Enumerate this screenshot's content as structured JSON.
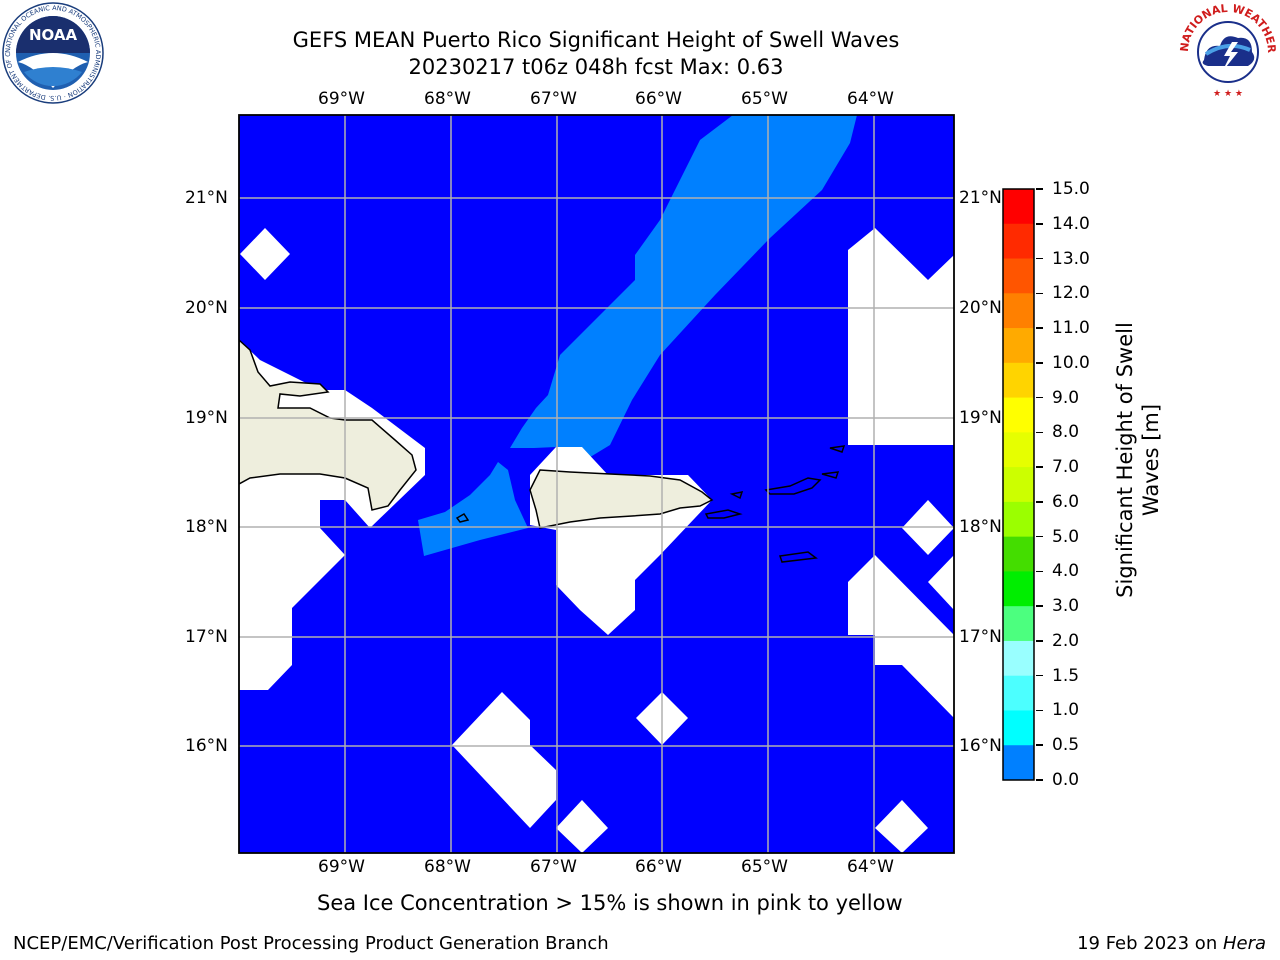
{
  "header": {
    "title_line1": "GEFS MEAN Puerto Rico Significant Height of Swell Waves",
    "title_line2": "20230217 t06z 048h fcst   Max: 0.63"
  },
  "logos": {
    "left": {
      "text": "NOAA",
      "ring_text": "NATIONAL OCEANIC AND ATMOSPHERIC ADMINISTRATION · U.S. DEPARTMENT OF COMMERCE"
    },
    "right": {
      "ring_text": "NATIONAL WEATHER SERVICE"
    }
  },
  "map": {
    "lon_labels": [
      "69°W",
      "68°W",
      "67°W",
      "66°W",
      "65°W",
      "64°W"
    ],
    "lat_labels": [
      "21°N",
      "20°N",
      "19°N",
      "18°N",
      "17°N",
      "16°N"
    ],
    "lon_range": [
      -70.0,
      -63.25
    ],
    "lat_range": [
      15.0,
      21.75
    ],
    "colors": {
      "swell_0_05": "#0000ff",
      "swell_05_10": "#0080ff",
      "no_data": "#ffffff",
      "land": "#eeeedd",
      "grid": "#b0b0b0"
    }
  },
  "colorbar": {
    "label_line1": "Significant Height of Swell",
    "label_line2": "Waves [m]",
    "ticks": [
      "15.0",
      "14.0",
      "13.0",
      "12.0",
      "11.0",
      "10.0",
      "9.0",
      "8.0",
      "7.0",
      "6.0",
      "5.0",
      "4.0",
      "3.0",
      "2.0",
      "1.5",
      "1.0",
      "0.5",
      "0.0"
    ],
    "colors": [
      "#ff0000",
      "#ff2a00",
      "#ff5500",
      "#ff8000",
      "#ffaa00",
      "#ffd400",
      "#ffff00",
      "#e6ff00",
      "#ccff00",
      "#9bff00",
      "#44dd00",
      "#00ee00",
      "#4cff7f",
      "#99ffff",
      "#4cffff",
      "#00ffff",
      "#0080ff",
      "#0000ff"
    ]
  },
  "footer": {
    "note": "Sea Ice Concentration > 15% is shown in pink to yellow",
    "left": "NCEP/EMC/Verification Post Processing Product Generation Branch",
    "right_date": "19 Feb 2023 on ",
    "right_host": "Hera"
  }
}
